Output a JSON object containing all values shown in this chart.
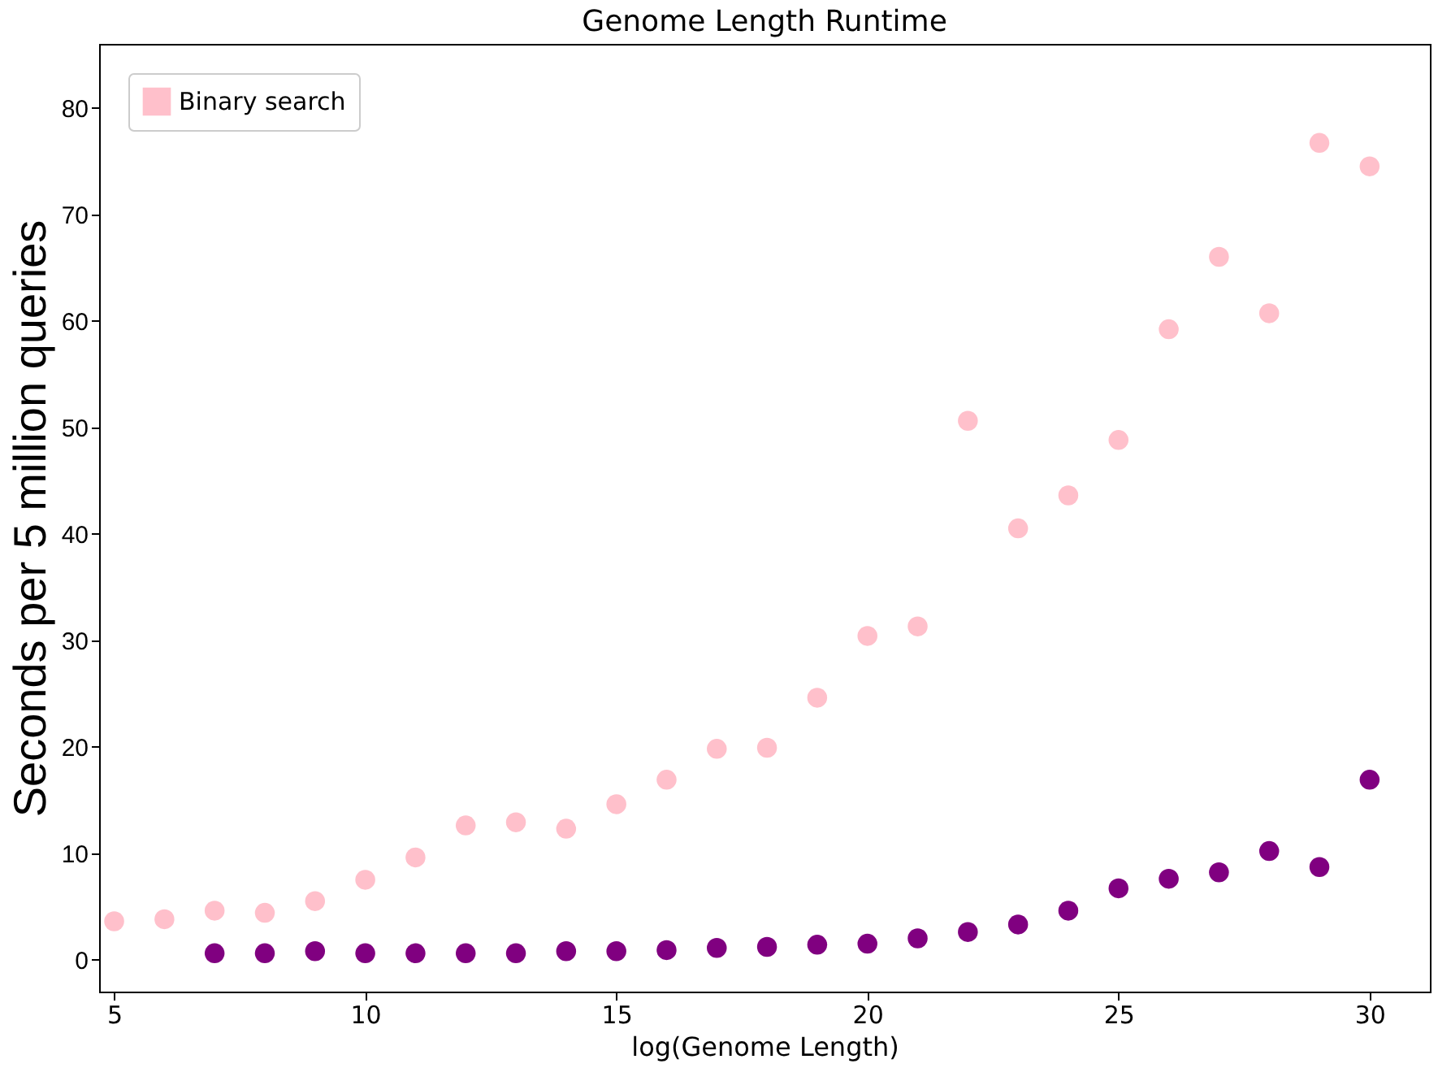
{
  "chart_data": {
    "type": "scatter",
    "title": "Genome Length Runtime",
    "xlabel": "log(Genome Length)",
    "ylabel": "Seconds per 5 million queries",
    "xlim": [
      4.7,
      31.2
    ],
    "xticks": [
      5,
      10,
      15,
      20,
      25,
      30
    ],
    "ylim": [
      -3,
      86
    ],
    "yticks": [
      0,
      10,
      20,
      30,
      40,
      50,
      60,
      70,
      80
    ],
    "grid": false,
    "legend": "top left",
    "marker": "circle",
    "series": [
      {
        "color": "#800080",
        "x": [
          7,
          8,
          9,
          10,
          11,
          12,
          13,
          14,
          15,
          16,
          17,
          18,
          19,
          20,
          21,
          22,
          23,
          24,
          25,
          26,
          27,
          28,
          29,
          30
        ],
        "values": [
          0.6,
          0.6,
          0.8,
          0.6,
          0.6,
          0.6,
          0.6,
          0.8,
          0.8,
          0.9,
          1.1,
          1.2,
          1.4,
          1.5,
          2.0,
          2.6,
          3.3,
          4.6,
          6.7,
          7.6,
          8.2,
          10.2,
          8.7,
          16.9
        ]
      },
      {
        "name": "Binary search",
        "color": "#ffc0cb",
        "x": [
          5,
          6,
          7,
          8,
          9,
          10,
          11,
          12,
          13,
          14,
          15,
          16,
          17,
          18,
          19,
          20,
          21,
          22,
          23,
          24,
          25,
          26,
          27,
          28,
          29,
          30
        ],
        "values": [
          3.6,
          3.8,
          4.6,
          4.4,
          5.5,
          7.5,
          9.6,
          12.6,
          12.9,
          12.3,
          14.6,
          16.9,
          19.8,
          19.9,
          24.6,
          30.4,
          31.3,
          50.6,
          40.5,
          43.6,
          48.8,
          59.2,
          66,
          60.7,
          76.7,
          74.5
        ]
      }
    ]
  }
}
